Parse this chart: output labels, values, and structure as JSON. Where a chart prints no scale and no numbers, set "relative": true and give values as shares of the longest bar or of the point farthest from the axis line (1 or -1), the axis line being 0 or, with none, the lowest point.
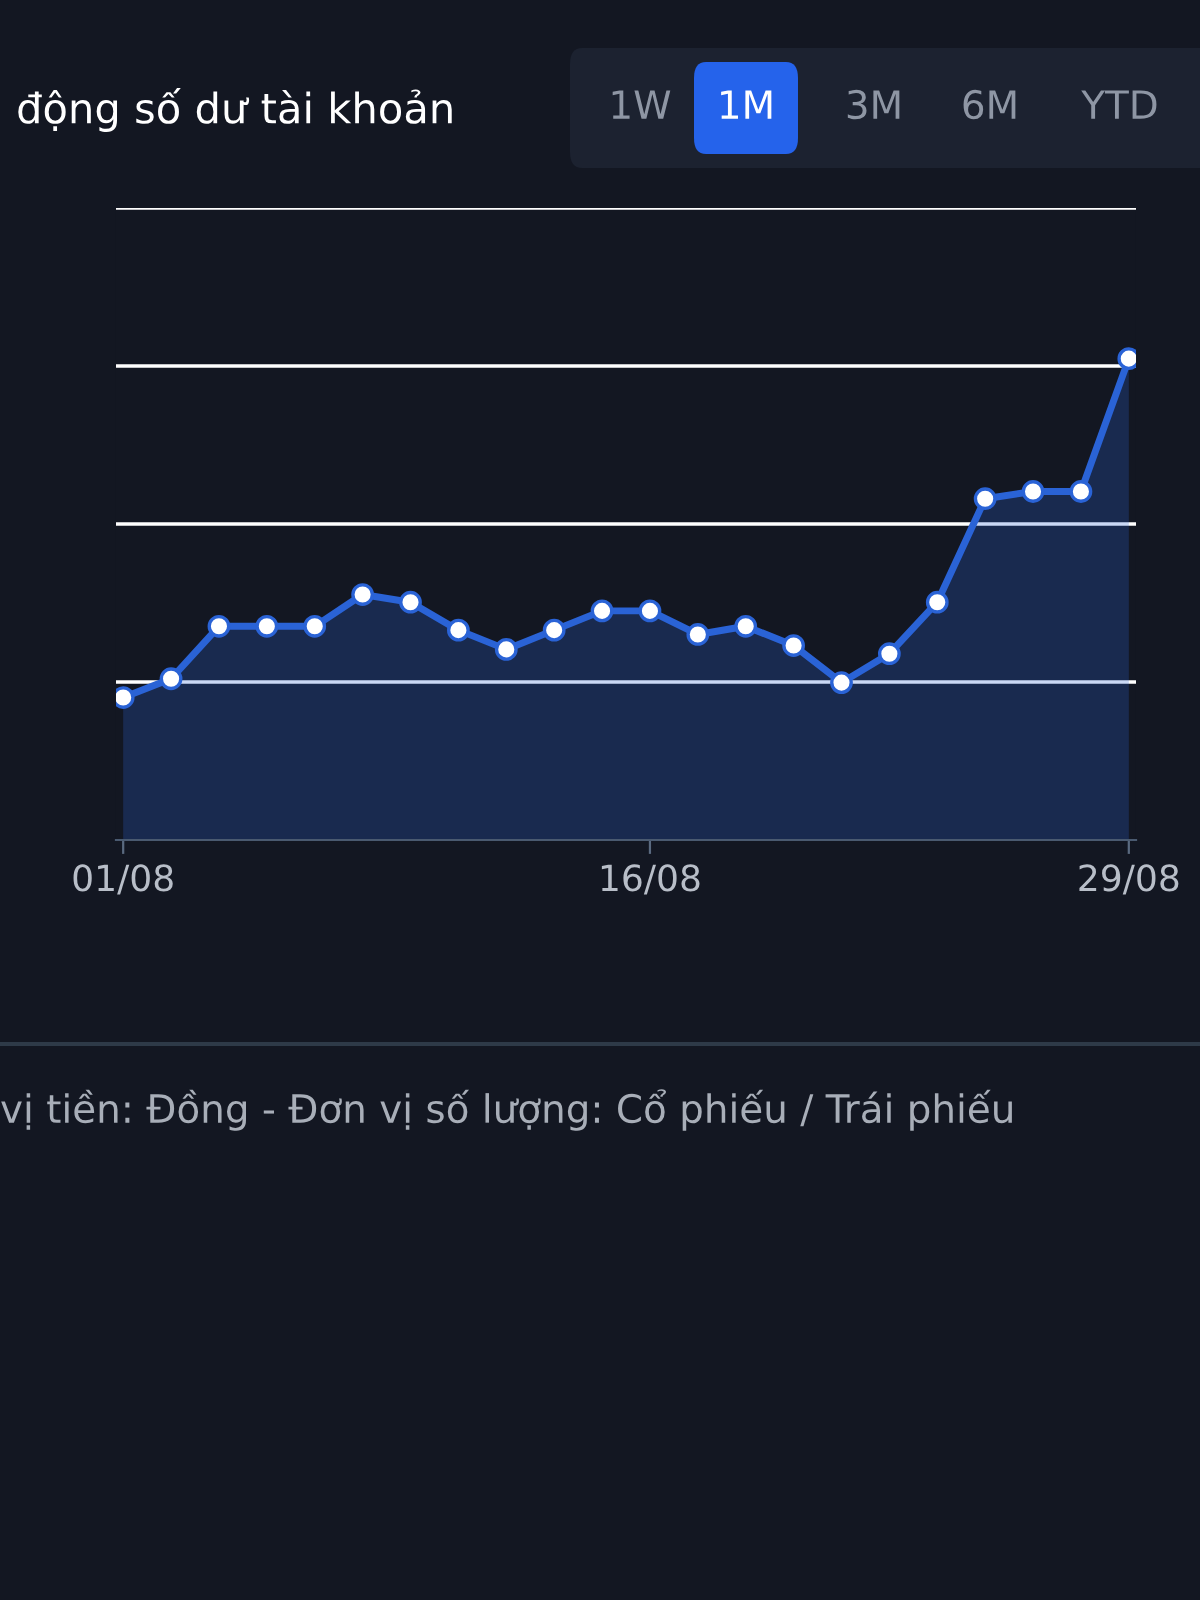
{
  "chart_data": {
    "type": "area",
    "title": "động số dư tài khoản",
    "relative": true,
    "grid": "y",
    "marker": "circle",
    "line_style": "solid",
    "categories": [
      "01/08",
      null,
      null,
      null,
      null,
      null,
      null,
      null,
      null,
      null,
      null,
      "16/08",
      null,
      null,
      null,
      null,
      null,
      null,
      null,
      null,
      null,
      "29/08"
    ],
    "series": [
      {
        "color": "#2a63d6",
        "values": [
          0.296,
          0.335,
          0.444,
          0.444,
          0.444,
          0.51,
          0.494,
          0.436,
          0.396,
          0.436,
          0.476,
          0.476,
          0.427,
          0.444,
          0.404,
          0.327,
          0.387,
          0.494,
          0.709,
          0.724,
          0.724,
          1
        ]
      }
    ],
    "annotations": [
      "1W",
      "1M",
      "3M",
      "6M",
      "YTD",
      "vị tiền: Đồng - Đơn vị số lượng: Cổ phiếu / Trái phiếu"
    ]
  }
}
